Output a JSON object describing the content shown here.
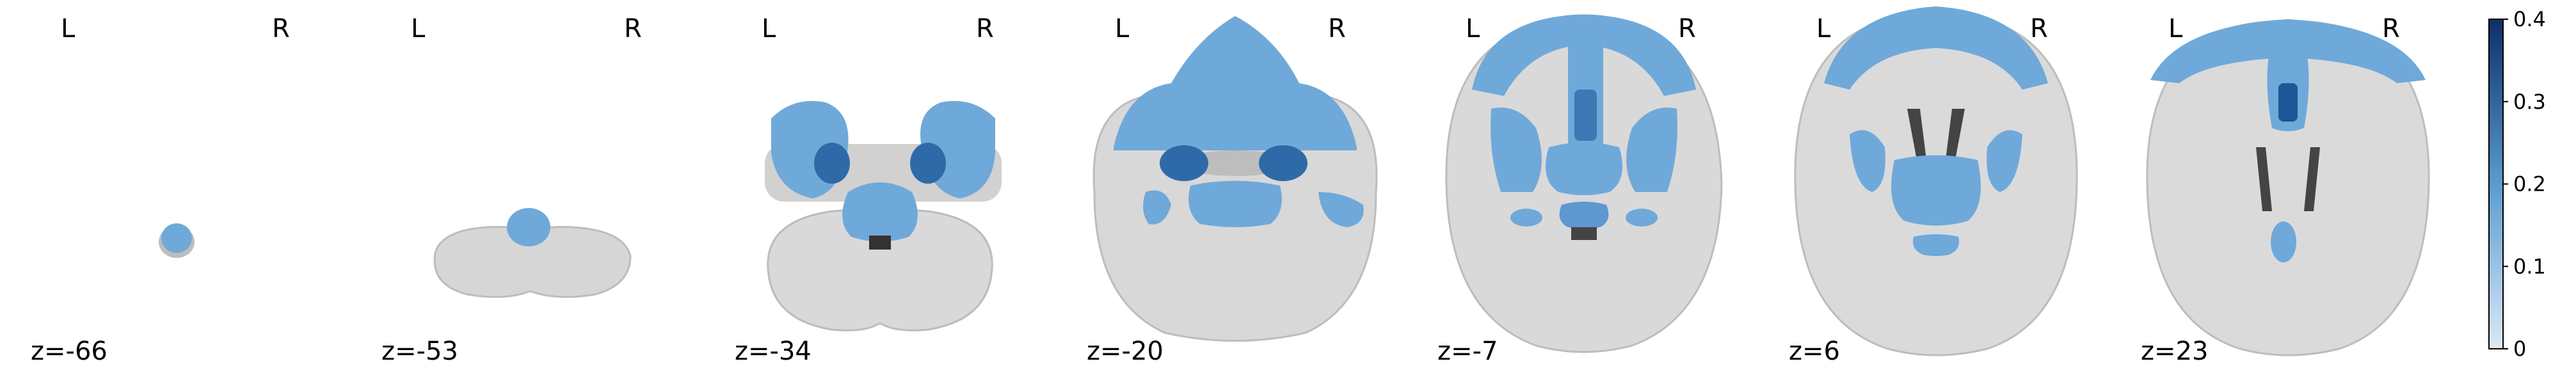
{
  "orientation": {
    "left": "L",
    "right": "R"
  },
  "slices": [
    {
      "label": "z=-66"
    },
    {
      "label": "z=-53"
    },
    {
      "label": "z=-34"
    },
    {
      "label": "z=-20"
    },
    {
      "label": "z=-7"
    },
    {
      "label": "z=6"
    },
    {
      "label": "z=23"
    }
  ],
  "colorbar": {
    "ticks": [
      "0.4",
      "0.3",
      "0.2",
      "0.1",
      "0"
    ],
    "values": [
      0.4,
      0.3,
      0.2,
      0.1,
      0
    ],
    "range": [
      0,
      0.4
    ],
    "color_low": "#c9def2",
    "color_high": "#0b2f6b"
  },
  "colors": {
    "overlay_light": "#6fa9d9",
    "overlay_dark": "#2b5f9e",
    "brain": "#d6d6d6",
    "ventricle": "#3a3a3a"
  }
}
